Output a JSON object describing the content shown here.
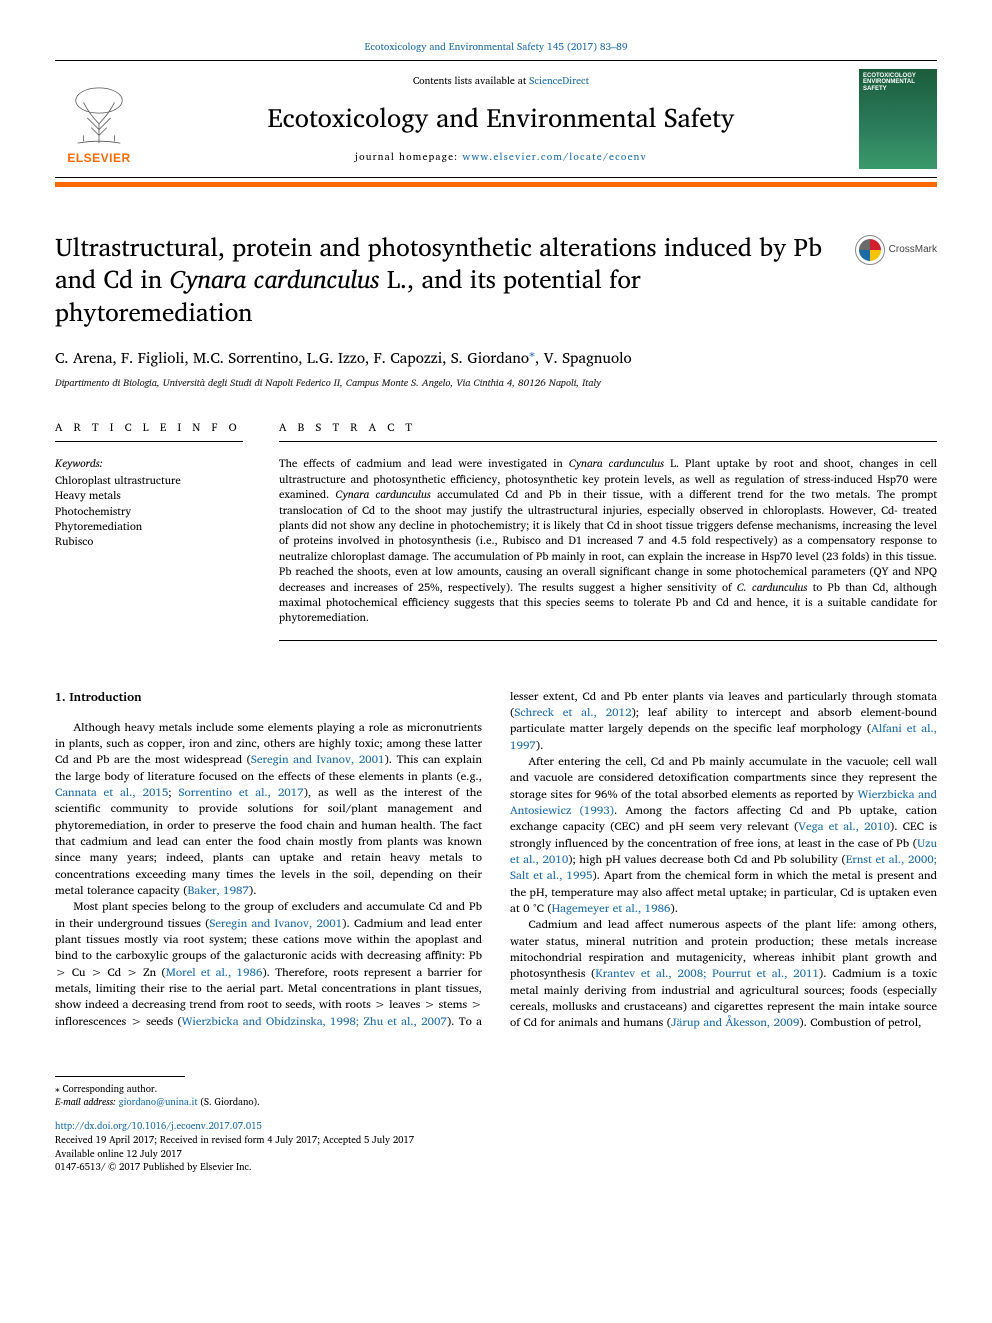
{
  "journalRef": {
    "text": "Ecotoxicology and Environmental Safety 145 (2017) 83–89",
    "fontsize": 10
  },
  "header": {
    "contentsLine": "Contents lists available at ",
    "contentsLink": "ScienceDirect",
    "journalName": "Ecotoxicology and Environmental Safety",
    "homepagePrefix": "journal homepage: ",
    "homepageLink": "www.elsevier.com/locate/ecoenv",
    "elsevierWord": "ELSEVIER",
    "coverTitle": "ECOTOXICOLOGY ENVIRONMENTAL SAFETY"
  },
  "colors": {
    "accentOrange": "#ff6a00",
    "linkBlue": "#1a6ba8",
    "ruleBlack": "#000000",
    "background": "#ffffff",
    "coverGreenTop": "#1a5c3a",
    "coverGreenBot": "#3a9a6a"
  },
  "title": {
    "pre": "Ultrastructural, protein and photosynthetic alterations induced by Pb and Cd in ",
    "ital": "Cynara cardunculus",
    "post": " L., and its potential for phytoremediation",
    "fontsize": 25
  },
  "crossmark": {
    "label": "CrossMark"
  },
  "authors": {
    "list": "C. Arena, F. Figlioli, M.C. Sorrentino, L.G. Izzo, F. Capozzi, S. Giordano",
    "corrAuthor": ", V. Spagnuolo",
    "corrMark": "⁎",
    "fontsize": 15
  },
  "affiliation": "Dipartimento di Biologia, Università degli Studi di Napoli Federico II, Campus Monte S. Angelo, Via Cinthia 4, 80126 Napoli, Italy",
  "info": {
    "label": "A R T I C L E  I N F O",
    "keywordsHead": "Keywords:",
    "keywords": [
      "Chloroplast ultrastructure",
      "Heavy metals",
      "Photochemistry",
      "Phytoremediation",
      "Rubisco"
    ]
  },
  "abstract": {
    "label": "A B S T R A C T",
    "html": "The effects of cadmium and lead were investigated in <span class=\"ital\">Cynara cardunculus</span> L. Plant uptake by root and shoot, changes in cell ultrastructure and photosynthetic efficiency, photosynthetic key protein levels, as well as regulation of stress-induced Hsp70 were examined. <span class=\"ital\">Cynara cardunculus</span> accumulated Cd and Pb in their tissue, with a different trend for the two metals. The prompt translocation of Cd to the shoot may justify the ultrastructural injuries, especially observed in chloroplasts. However, Cd- treated plants did not show any decline in photochemistry; it is likely that Cd in shoot tissue triggers defense mechanisms, increasing the level of proteins involved in photosynthesis (i.e., Rubisco and D1 increased 7 and 4.5 fold respectively) as a compensatory response to neutralize chloroplast damage. The accumulation of Pb mainly in root, can explain the increase in Hsp70 level (23 folds) in this tissue. Pb reached the shoots, even at low amounts, causing an overall significant change in some photochemical parameters (QY and NPQ decreases and increases of 25%, respectively). The results suggest a higher sensitivity of <span class=\"ital\">C. cardunculus</span> to Pb than Cd, although maximal photochemical efficiency suggests that this species seems to tolerate Pb and Cd and hence, it is a suitable candidate for phytoremediation.",
    "fontsize": 11
  },
  "introduction": {
    "heading": "1. Introduction",
    "paragraphs": [
      "Although heavy metals include some elements playing a role as micronutrients in plants, such as copper, iron and zinc, others are highly toxic; among these latter Cd and Pb are the most widespread (<a>Seregin and Ivanov, 2001</a>). This can explain the large body of literature focused on the effects of these elements in plants (e.g., <a>Cannata et al., 2015</a>; <a>Sorrentino et al., 2017</a>), as well as the interest of the scientific community to provide solutions for soil/plant management and phytoremediation, in order to preserve the food chain and human health. The fact that cadmium and lead can enter the food chain mostly from plants was known since many years; indeed, plants can uptake and retain heavy metals to concentrations exceeding many times the levels in the soil, depending on their metal tolerance capacity (<a>Baker, 1987</a>).",
      "Most plant species belong to the group of excluders and accumulate Cd and Pb in their underground tissues (<a>Seregin and Ivanov, 2001</a>). Cadmium and lead enter plant tissues mostly via root system; these cations move within the apoplast and bind to the carboxylic groups of the galacturonic acids with decreasing affinity: Pb &gt; Cu &gt; Cd &gt; Zn (<a>Morel et al., 1986</a>). Therefore, roots represent a barrier for metals, limiting their rise to the aerial part. Metal concentrations in plant tissues, show indeed a decreasing trend from root to seeds, with roots &gt; leaves &gt; stems &gt; inflorescences &gt; seeds (<a>Wierzbicka and Obidzinska, 1998; Zhu et al., 2007</a>). To a lesser extent, Cd and Pb enter plants via leaves and particularly through stomata (<a>Schreck et al., 2012</a>); leaf ability to intercept and absorb element-bound particulate matter largely depends on the specific leaf morphology (<a>Alfani et al., 1997</a>).",
      "After entering the cell, Cd and Pb mainly accumulate in the vacuole; cell wall and vacuole are considered detoxification compartments since they represent the storage sites for 96% of the total absorbed elements as reported by <a>Wierzbicka and Antosiewicz (1993)</a>. Among the factors affecting Cd and Pb uptake, cation exchange capacity (CEC) and pH seem very relevant (<a>Vega et al., 2010</a>). CEC is strongly influenced by the concentration of free ions, at least in the case of Pb (<a>Uzu et al., 2010</a>); high pH values decrease both Cd and Pb solubility (<a>Ernst et al., 2000; Salt et al., 1995</a>). Apart from the chemical form in which the metal is present and the pH, temperature may also affect metal uptake; in particular, Cd is uptaken even at 0 °C (<a>Hagemeyer et al., 1986</a>).",
      "Cadmium and lead affect numerous aspects of the plant life: among others, water status, mineral nutrition and protein production; these metals increase mitochondrial respiration and mutagenicity, whereas inhibit plant growth and photosynthesis (<a>Krantev et al., 2008; Pourrut et al., 2011</a>). Cadmium is a toxic metal mainly deriving from industrial and agricultural sources; foods (especially cereals, mollusks and crustaceans) and cigarettes represent the main intake source of Cd for animals and humans (<a>Järup and Åkesson, 2009</a>). Combustion of petrol,"
    ],
    "fontsize": 11.5
  },
  "footer": {
    "corrLabel": "⁎ Corresponding author.",
    "emailLabel": "E-mail address:",
    "email": "giordano@unina.it",
    "emailName": " (S. Giordano).",
    "doi": "http://dx.doi.org/10.1016/j.ecoenv.2017.07.015",
    "received": "Received 19 April 2017; Received in revised form 4 July 2017; Accepted 5 July 2017",
    "available": "Available online 12 July 2017",
    "copyright": "0147-6513/ © 2017 Published by Elsevier Inc."
  },
  "layout": {
    "pageWidth": 992,
    "pageHeight": 1323,
    "columns": 2,
    "columnGap": 28,
    "orangeBarHeight": 4.5
  }
}
